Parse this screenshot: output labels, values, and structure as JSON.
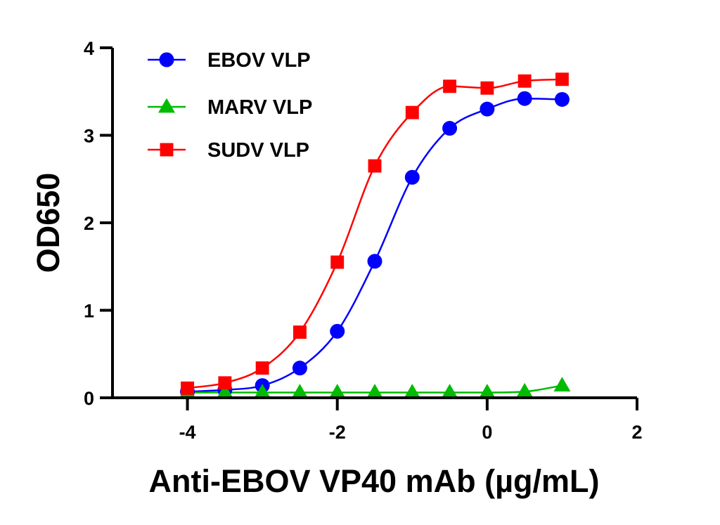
{
  "chart_data": {
    "type": "line",
    "xlabel": "Anti-EBOV VP40 mAb (µg/mL)",
    "ylabel": "OD650",
    "xlim": [
      -5,
      2
    ],
    "ylim": [
      0,
      4
    ],
    "xticks": [
      -4,
      -2,
      0,
      2
    ],
    "yticks": [
      0,
      1,
      2,
      3,
      4
    ],
    "x_tick_labels": [
      "-4",
      "-2",
      "0",
      "2"
    ],
    "y_tick_labels": [
      "0",
      "1",
      "2",
      "3",
      "4"
    ],
    "grid": false,
    "legend_position": "top-left",
    "series": [
      {
        "name": "EBOV VLP",
        "color": "#0000ff",
        "marker": "circle",
        "x": [
          -4,
          -3.5,
          -3,
          -2.5,
          -2,
          -1.5,
          -1,
          -0.5,
          0,
          0.5,
          1
        ],
        "y": [
          0.07,
          0.09,
          0.14,
          0.34,
          0.76,
          1.56,
          2.52,
          3.08,
          3.3,
          3.42,
          3.41
        ]
      },
      {
        "name": "MARV VLP",
        "color": "#00bb00",
        "marker": "triangle",
        "x": [
          -4,
          -3.5,
          -3,
          -2.5,
          -2,
          -1.5,
          -1,
          -0.5,
          0,
          0.5,
          1
        ],
        "y": [
          0.06,
          0.06,
          0.06,
          0.06,
          0.06,
          0.06,
          0.06,
          0.06,
          0.06,
          0.07,
          0.14
        ]
      },
      {
        "name": "SUDV VLP",
        "color": "#ff0000",
        "marker": "square",
        "x": [
          -4,
          -3.5,
          -3,
          -2.5,
          -2,
          -1.5,
          -1,
          -0.5,
          0,
          0.5,
          1
        ],
        "y": [
          0.11,
          0.17,
          0.34,
          0.75,
          1.55,
          2.65,
          3.26,
          3.56,
          3.54,
          3.62,
          3.64
        ]
      }
    ]
  }
}
